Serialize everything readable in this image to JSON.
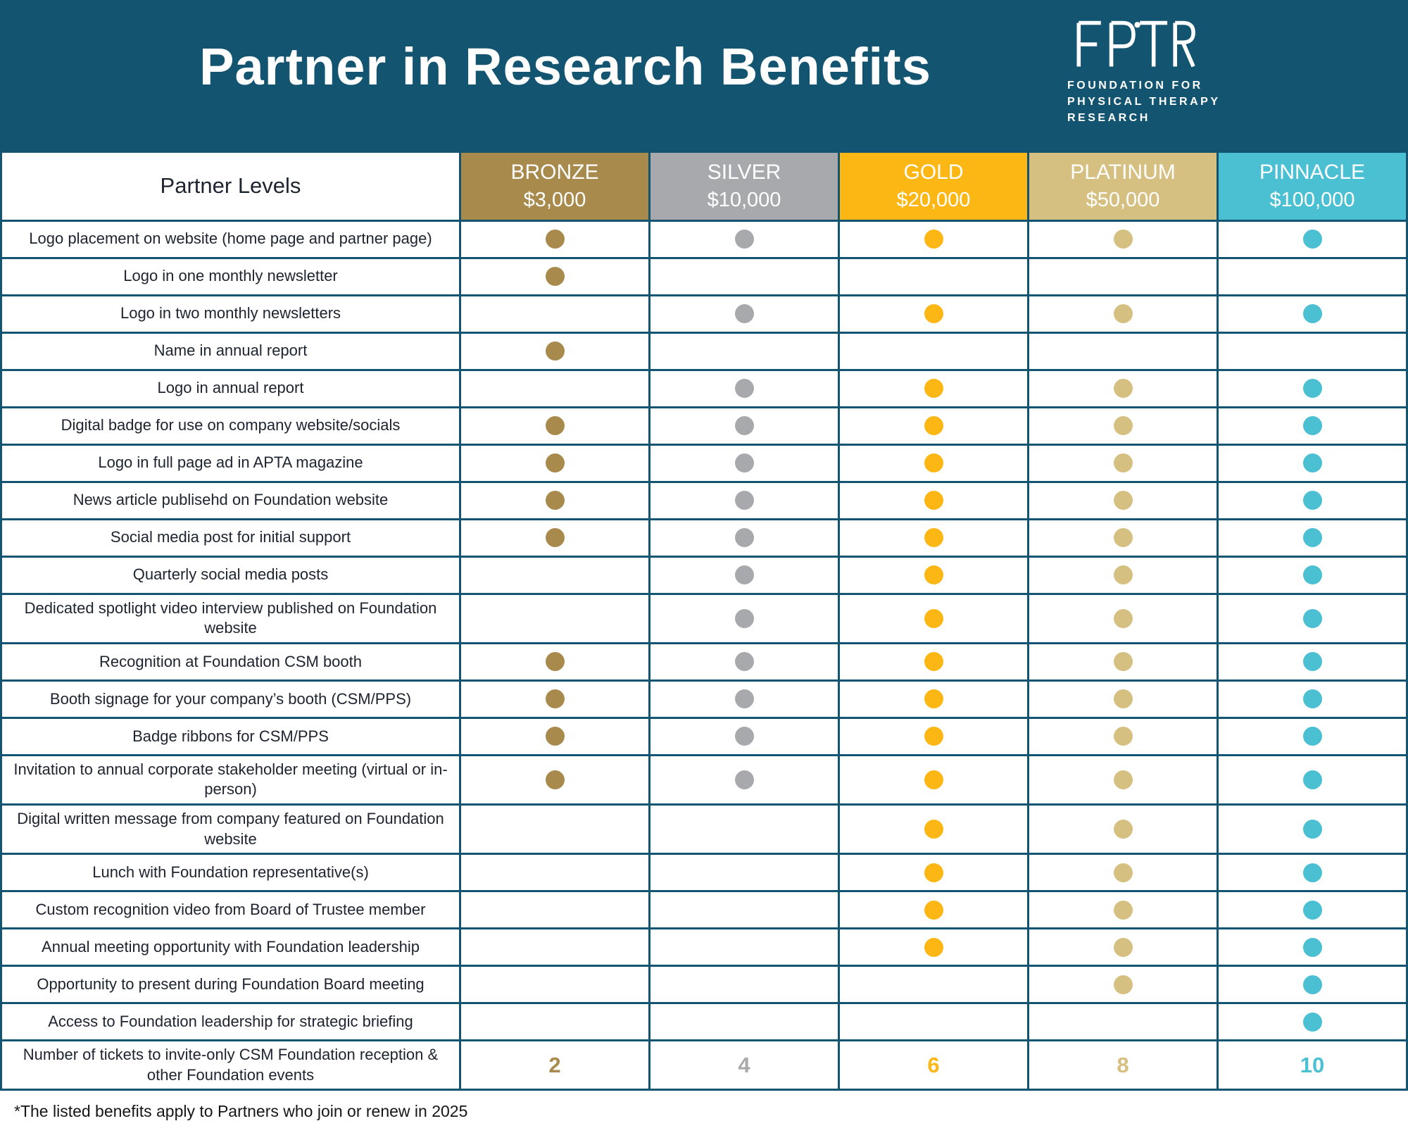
{
  "header": {
    "title": "Partner in Research Benefits",
    "logo": {
      "acronym": "FPTR",
      "lines": [
        "FOUNDATION FOR",
        "PHYSICAL THERAPY",
        "RESEARCH"
      ]
    }
  },
  "colors": {
    "banner": "#135571",
    "border": "#135571"
  },
  "table": {
    "first_column_header": "Partner Levels",
    "levels": [
      {
        "name": "BRONZE",
        "price": "$3,000",
        "color": "#A98A4D"
      },
      {
        "name": "SILVER",
        "price": "$10,000",
        "color": "#A7A9AC"
      },
      {
        "name": "GOLD",
        "price": "$20,000",
        "color": "#FDB714"
      },
      {
        "name": "PLATINUM",
        "price": "$50,000",
        "color": "#D6C081"
      },
      {
        "name": "PINNACLE",
        "price": "$100,000",
        "color": "#4BC0D3"
      }
    ],
    "rows": [
      {
        "label": "Logo placement on website (home page and partner page)",
        "availability": [
          true,
          true,
          true,
          true,
          true
        ]
      },
      {
        "label": "Logo in one monthly newsletter",
        "availability": [
          true,
          false,
          false,
          false,
          false
        ]
      },
      {
        "label": "Logo in two monthly newsletters",
        "availability": [
          false,
          true,
          true,
          true,
          true
        ]
      },
      {
        "label": "Name in annual report",
        "availability": [
          true,
          false,
          false,
          false,
          false
        ]
      },
      {
        "label": "Logo in annual report",
        "availability": [
          false,
          true,
          true,
          true,
          true
        ]
      },
      {
        "label": "Digital badge for use on company website/socials",
        "availability": [
          true,
          true,
          true,
          true,
          true
        ]
      },
      {
        "label": "Logo in full page ad in APTA magazine",
        "availability": [
          true,
          true,
          true,
          true,
          true
        ]
      },
      {
        "label": "News article publisehd on Foundation website",
        "availability": [
          true,
          true,
          true,
          true,
          true
        ]
      },
      {
        "label": "Social media post for initial support",
        "availability": [
          true,
          true,
          true,
          true,
          true
        ]
      },
      {
        "label": "Quarterly social media posts",
        "availability": [
          false,
          true,
          true,
          true,
          true
        ]
      },
      {
        "label": "Dedicated spotlight video interview published on Foundation website",
        "availability": [
          false,
          true,
          true,
          true,
          true
        ]
      },
      {
        "label": "Recognition at Foundation CSM booth",
        "availability": [
          true,
          true,
          true,
          true,
          true
        ]
      },
      {
        "label": "Booth signage for your company’s booth (CSM/PPS)",
        "availability": [
          true,
          true,
          true,
          true,
          true
        ]
      },
      {
        "label": "Badge ribbons for CSM/PPS",
        "availability": [
          true,
          true,
          true,
          true,
          true
        ]
      },
      {
        "label": "Invitation to annual corporate stakeholder meeting (virtual or in-person)",
        "availability": [
          true,
          true,
          true,
          true,
          true
        ]
      },
      {
        "label": "Digital written message from company featured on Foundation website",
        "availability": [
          false,
          false,
          true,
          true,
          true
        ]
      },
      {
        "label": "Lunch with Foundation representative(s)",
        "availability": [
          false,
          false,
          true,
          true,
          true
        ]
      },
      {
        "label": "Custom recognition video from Board of Trustee member",
        "availability": [
          false,
          false,
          true,
          true,
          true
        ]
      },
      {
        "label": "Annual meeting opportunity with Foundation leadership",
        "availability": [
          false,
          false,
          true,
          true,
          true
        ]
      },
      {
        "label": "Opportunity to present during Foundation Board meeting",
        "availability": [
          false,
          false,
          false,
          true,
          true
        ]
      },
      {
        "label": "Access to Foundation leadership for strategic briefing",
        "availability": [
          false,
          false,
          false,
          false,
          true
        ]
      }
    ],
    "tickets_row": {
      "label": "Number of tickets to invite-only CSM Foundation reception & other Foundation events",
      "values": [
        "2",
        "4",
        "6",
        "8",
        "10"
      ]
    }
  },
  "footnote": "*The listed benefits apply to Partners who join or renew in 2025"
}
